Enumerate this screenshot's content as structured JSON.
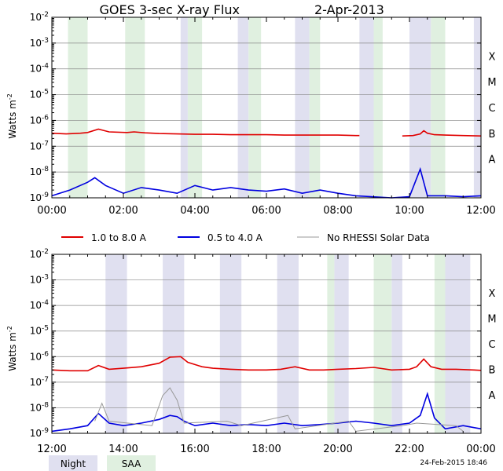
{
  "title": "GOES 3-sec X-ray Flux",
  "date": "2-Apr-2013",
  "ylabel": "Watts m",
  "ylabel_sup": "-2",
  "timestamp": "24-Feb-2015 18:46",
  "legend": {
    "series": [
      {
        "label": "1.0 to 8.0 A",
        "color": "#e00000"
      },
      {
        "label": "0.5 to 4.0 A",
        "color": "#0000e0"
      },
      {
        "label": "No RHESSI Solar Data",
        "color": "#999999"
      }
    ],
    "night_label": "Night",
    "saa_label": "SAA",
    "night_color": "#e0e0f0",
    "saa_color": "#e0f0e0"
  },
  "flare_classes": [
    "A",
    "B",
    "C",
    "M",
    "X"
  ],
  "chart_data": [
    {
      "type": "line",
      "panel": "top",
      "x_unit": "hours UT",
      "xlim": [
        0,
        12
      ],
      "xticks": [
        "00:00",
        "02:00",
        "04:00",
        "06:00",
        "08:00",
        "10:00",
        "12:00"
      ],
      "ylim": [
        1e-09,
        0.01
      ],
      "yscale": "log",
      "yticks": [
        "10-9",
        "10-8",
        "10-7",
        "10-6",
        "10-5",
        "10-4",
        "10-3",
        "10-2"
      ],
      "night": [
        [
          3.6,
          3.8
        ],
        [
          5.2,
          5.5
        ],
        [
          6.8,
          7.2
        ],
        [
          8.6,
          9.0
        ],
        [
          10.0,
          10.6
        ],
        [
          11.8,
          12.0
        ]
      ],
      "saa": [
        [
          0.45,
          1.0
        ],
        [
          2.05,
          2.6
        ],
        [
          3.8,
          4.2
        ],
        [
          5.5,
          5.85
        ],
        [
          7.2,
          7.5
        ],
        [
          9.0,
          9.25
        ],
        [
          10.6,
          11.0
        ]
      ],
      "series": [
        {
          "name": "1.0 to 8.0 A",
          "color": "#e00000",
          "x": [
            0.0,
            0.4,
            0.8,
            1.0,
            1.3,
            1.6,
            2.1,
            2.3,
            2.6,
            3.0,
            3.5,
            4.0,
            4.5,
            5.0,
            5.5,
            6.0,
            6.5,
            7.0,
            7.5,
            8.0,
            8.5,
            8.6,
            null,
            9.8,
            10.1,
            10.3,
            10.4,
            10.5,
            10.7,
            11.0,
            11.5,
            12.0
          ],
          "y": [
            3.2e-07,
            3e-07,
            3.2e-07,
            3.4e-07,
            4.6e-07,
            3.6e-07,
            3.4e-07,
            3.6e-07,
            3.3e-07,
            3.1e-07,
            3e-07,
            2.9e-07,
            2.9e-07,
            2.8e-07,
            2.8e-07,
            2.8e-07,
            2.7e-07,
            2.7e-07,
            2.7e-07,
            2.7e-07,
            2.6e-07,
            2.6e-07,
            null,
            2.5e-07,
            2.6e-07,
            3e-07,
            4e-07,
            3.2e-07,
            2.8e-07,
            2.7e-07,
            2.6e-07,
            2.5e-07
          ]
        },
        {
          "name": "0.5 to 4.0 A",
          "color": "#0000e0",
          "x": [
            0.0,
            0.5,
            1.0,
            1.2,
            1.5,
            2.0,
            2.5,
            3.0,
            3.5,
            4.0,
            4.5,
            5.0,
            5.5,
            6.0,
            6.5,
            7.0,
            7.5,
            8.0,
            8.5,
            9.5,
            10.0,
            10.3,
            10.5,
            11.0,
            11.5,
            12.0
          ],
          "y": [
            1.2e-09,
            2e-09,
            4e-09,
            6e-09,
            3e-09,
            1.5e-09,
            2.5e-09,
            2e-09,
            1.5e-09,
            3e-09,
            2e-09,
            2.5e-09,
            2e-09,
            1.8e-09,
            2.2e-09,
            1.5e-09,
            2e-09,
            1.5e-09,
            1.2e-09,
            1e-09,
            1.1e-09,
            1.3e-08,
            1.2e-09,
            1.2e-09,
            1.1e-09,
            1.2e-09
          ]
        }
      ]
    },
    {
      "type": "line",
      "panel": "bottom",
      "x_unit": "hours UT",
      "xlim": [
        12,
        24
      ],
      "xticks": [
        "12:00",
        "14:00",
        "16:00",
        "18:00",
        "20:00",
        "22:00",
        "00:00"
      ],
      "ylim": [
        1e-09,
        0.01
      ],
      "yscale": "log",
      "yticks": [
        "10-9",
        "10-8",
        "10-7",
        "10-6",
        "10-5",
        "10-4",
        "10-3",
        "10-2"
      ],
      "night": [
        [
          13.5,
          14.1
        ],
        [
          15.1,
          15.7
        ],
        [
          16.7,
          17.3
        ],
        [
          18.3,
          18.9
        ],
        [
          19.9,
          20.3
        ],
        [
          21.5,
          21.8
        ],
        [
          23.0,
          23.7
        ]
      ],
      "saa": [
        [
          19.7,
          19.9
        ],
        [
          21.0,
          21.5
        ],
        [
          22.7,
          23.0
        ]
      ],
      "series": [
        {
          "name": "1.0 to 8.0 A",
          "color": "#e00000",
          "x": [
            12.0,
            12.5,
            13.0,
            13.3,
            13.6,
            14.0,
            14.5,
            15.0,
            15.3,
            15.6,
            15.8,
            16.2,
            16.5,
            17.0,
            17.5,
            18.0,
            18.4,
            18.8,
            19.2,
            19.6,
            20.0,
            20.5,
            21.0,
            21.5,
            22.0,
            22.2,
            22.4,
            22.6,
            22.9,
            23.3,
            23.8,
            24.0
          ],
          "y": [
            3e-07,
            2.8e-07,
            2.8e-07,
            4.5e-07,
            3.2e-07,
            3.5e-07,
            4e-07,
            5.5e-07,
            9.5e-07,
            1e-06,
            6e-07,
            4e-07,
            3.5e-07,
            3.2e-07,
            3e-07,
            3e-07,
            3.2e-07,
            4e-07,
            3e-07,
            3e-07,
            3.2e-07,
            3.4e-07,
            3.8e-07,
            3e-07,
            3.2e-07,
            4e-07,
            8e-07,
            4e-07,
            3.2e-07,
            3.2e-07,
            3e-07,
            2.9e-07
          ]
        },
        {
          "name": "0.5 to 4.0 A",
          "color": "#0000e0",
          "x": [
            12.0,
            12.5,
            13.0,
            13.3,
            13.6,
            14.0,
            14.5,
            15.0,
            15.3,
            15.5,
            15.7,
            16.0,
            16.5,
            17.0,
            17.5,
            18.0,
            18.5,
            19.0,
            19.5,
            20.0,
            20.5,
            21.0,
            21.5,
            22.0,
            22.3,
            22.5,
            22.7,
            23.0,
            23.5,
            24.0
          ],
          "y": [
            1.2e-09,
            1.5e-09,
            2e-09,
            6e-09,
            2.5e-09,
            2e-09,
            2.5e-09,
            3.5e-09,
            5e-09,
            4.5e-09,
            3e-09,
            2e-09,
            2.5e-09,
            2e-09,
            2.2e-09,
            2e-09,
            2.5e-09,
            2e-09,
            2.2e-09,
            2.5e-09,
            3e-09,
            2.5e-09,
            2e-09,
            2.5e-09,
            5e-09,
            3.5e-08,
            4e-09,
            1.5e-09,
            2e-09,
            1.5e-09
          ]
        },
        {
          "name": "No RHESSI Solar Data",
          "color": "#999999",
          "x": [
            13.2,
            13.4,
            13.6,
            14.8,
            15.1,
            15.3,
            15.5,
            15.7,
            16.9,
            17.3,
            18.6,
            18.8,
            20.3,
            20.5,
            21.8,
            22.2,
            23.3,
            23.5
          ],
          "y": [
            3e-09,
            1.5e-08,
            3e-09,
            2e-09,
            3e-08,
            6e-08,
            2e-08,
            2.5e-09,
            3e-09,
            2e-09,
            5e-09,
            1.5e-09,
            3e-09,
            1.2e-09,
            2e-09,
            2.5e-09,
            2e-09,
            1.2e-09
          ]
        }
      ]
    }
  ]
}
